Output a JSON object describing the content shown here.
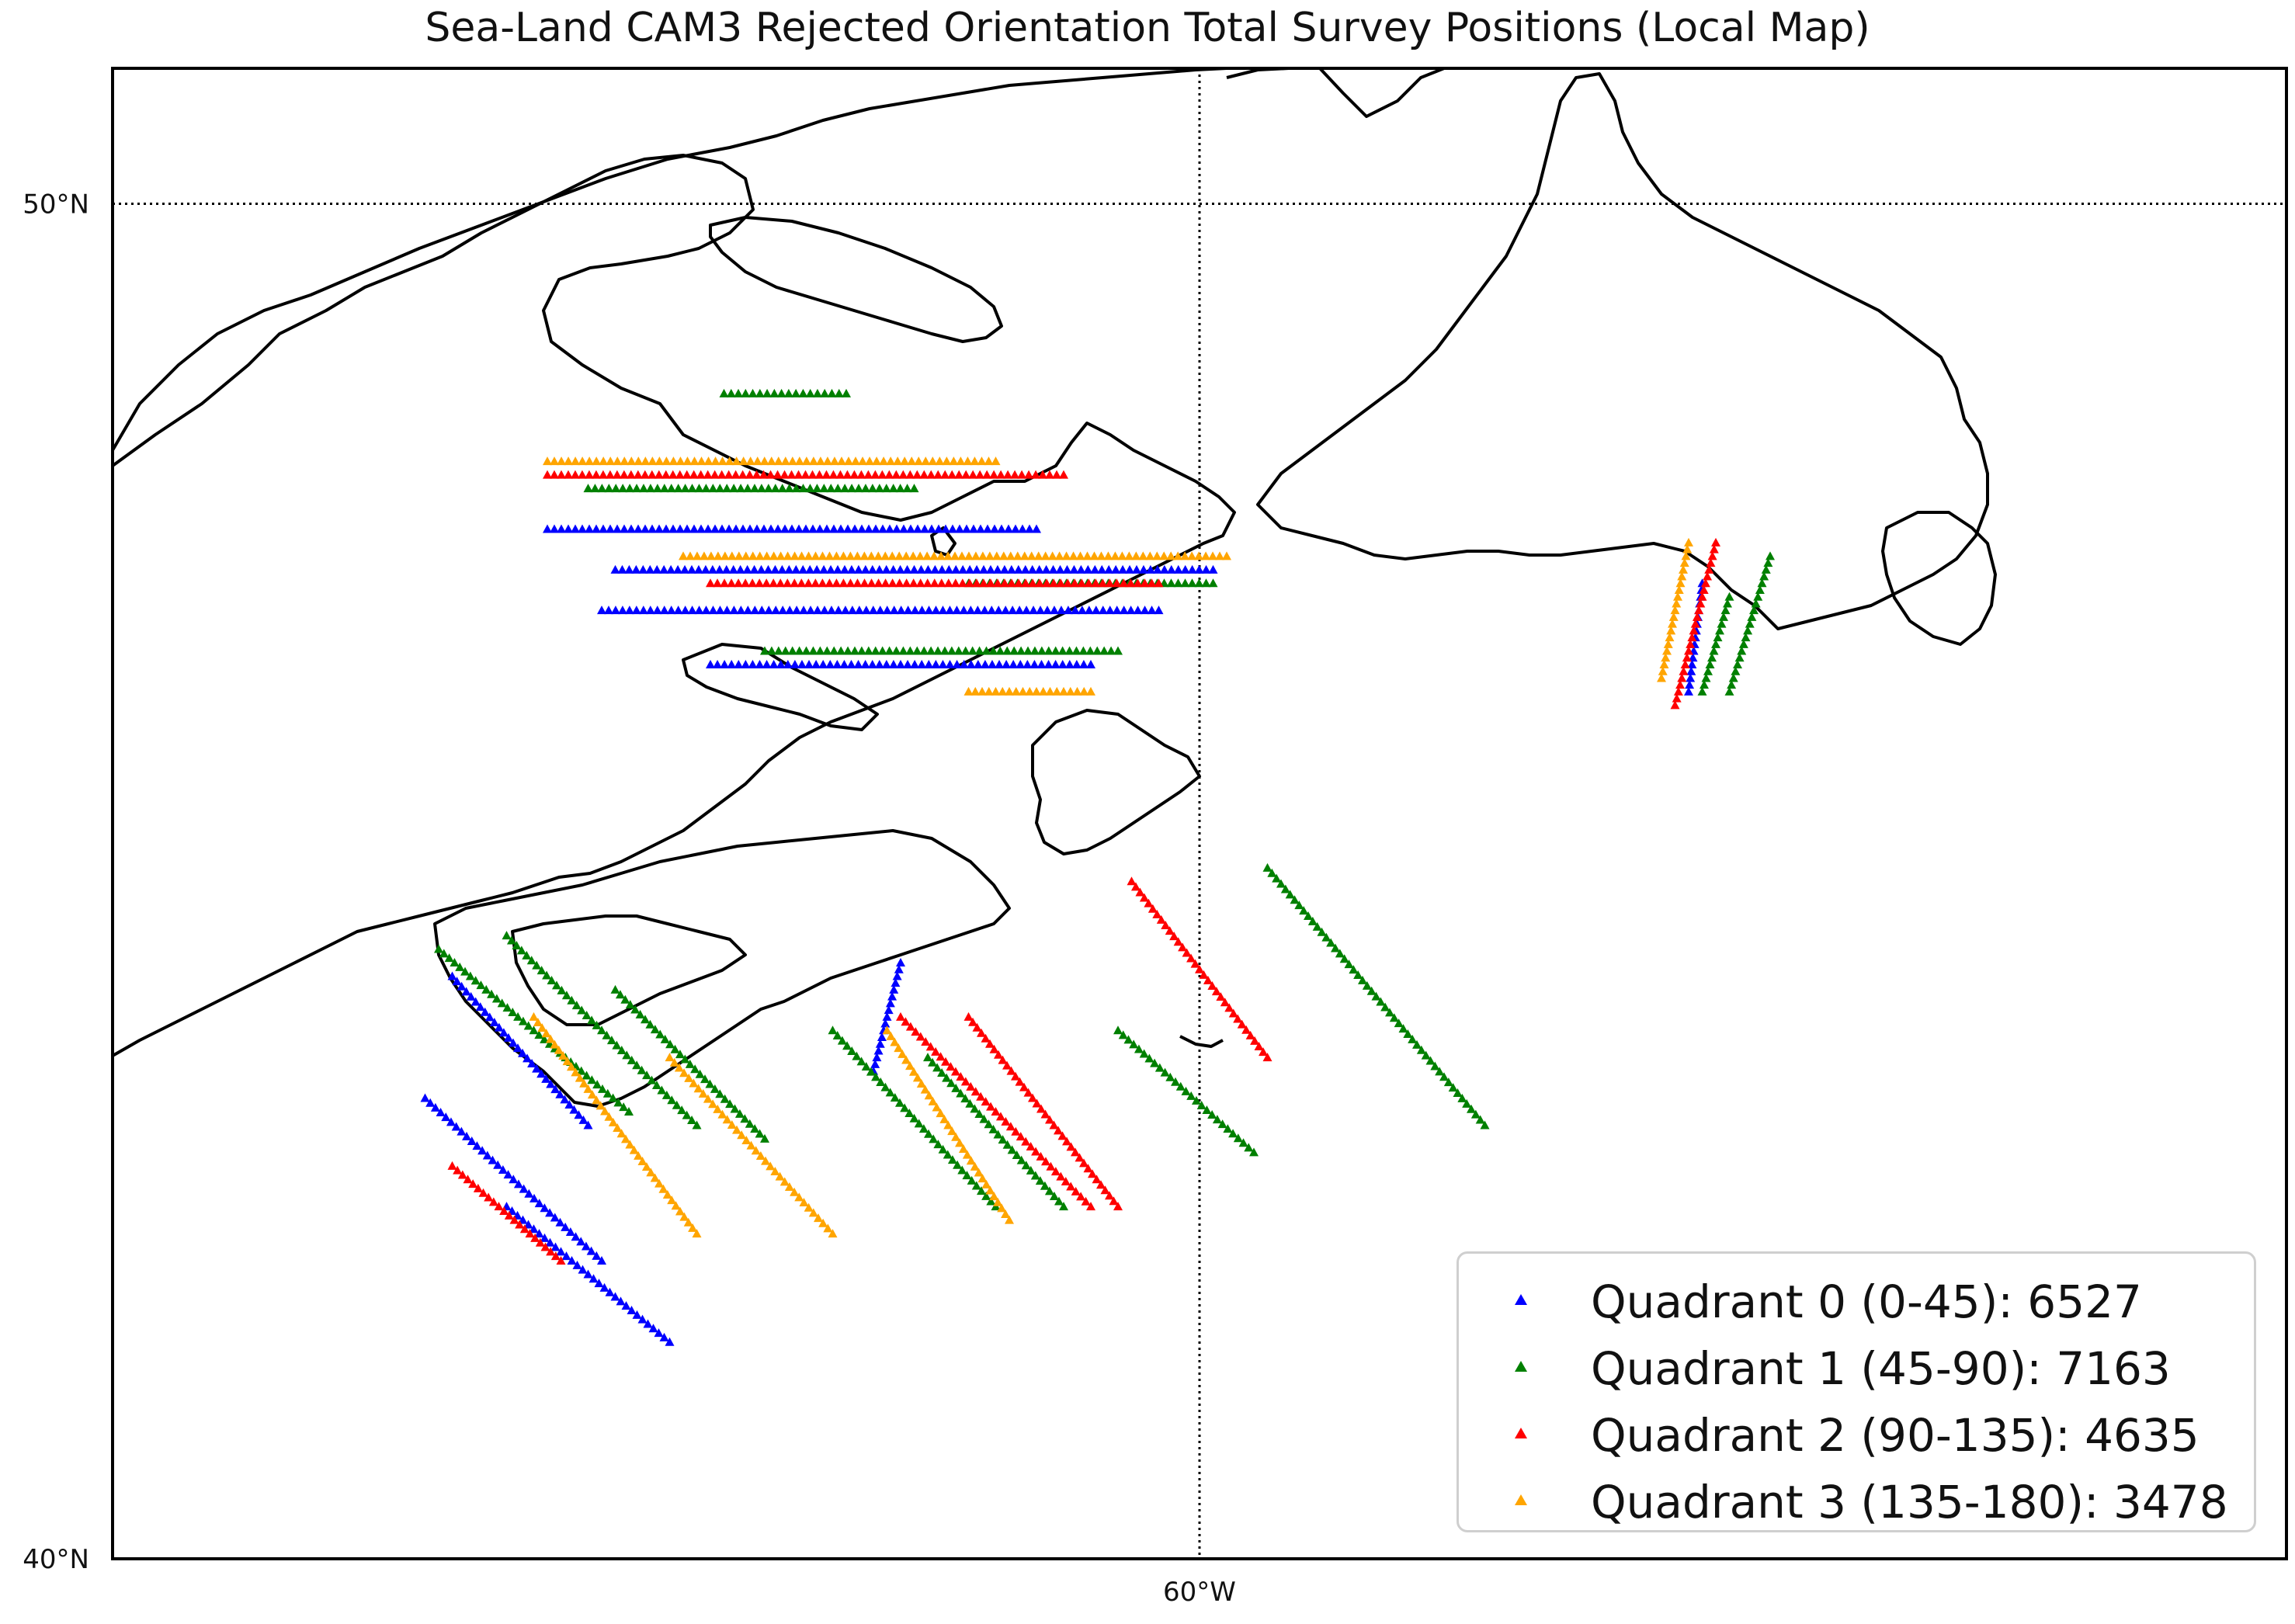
{
  "title": "Sea-Land CAM3 Rejected Orientation Total Survey Positions (Local Map)",
  "map": {
    "lat_labels": [
      {
        "lat": 50,
        "text": "50°N"
      },
      {
        "lat": 40,
        "text": "40°N"
      }
    ],
    "lon_labels": [
      {
        "lon": -60,
        "text": "60°W"
      }
    ],
    "gridlines": "dotted",
    "extent": {
      "lon_min": -68,
      "lon_max": -52,
      "lat_min": 40,
      "lat_max": 51
    }
  },
  "legend": {
    "placement": "bottom-right",
    "items": [
      {
        "label": "Quadrant 0 (0-45): 6527",
        "color": "#0000ff"
      },
      {
        "label": "Quadrant 1 (45-90): 7163",
        "color": "#008000"
      },
      {
        "label": "Quadrant 2 (90-135): 4635",
        "color": "#ff0000"
      },
      {
        "label": "Quadrant 3 (135-180): 3478",
        "color": "#ffa500"
      }
    ]
  },
  "chart_data": {
    "type": "scatter",
    "title": "Sea-Land CAM3 Rejected Orientation Total Survey Positions (Local Map)",
    "xlabel": "",
    "ylabel": "",
    "marker": "triangle",
    "series_colors": [
      "#0000ff",
      "#008000",
      "#ff0000",
      "#ffa500"
    ],
    "tracks": [
      {
        "q": 0,
        "from": [
          -65.7,
          43.4
        ],
        "to": [
          -64.4,
          42.2
        ]
      },
      {
        "q": 0,
        "from": [
          -65.1,
          42.6
        ],
        "to": [
          -63.9,
          41.6
        ]
      },
      {
        "q": 0,
        "from": [
          -65.5,
          44.3
        ],
        "to": [
          -64.5,
          43.2
        ]
      },
      {
        "q": 0,
        "from": [
          -62.2,
          44.4
        ],
        "to": [
          -62.4,
          43.6
        ]
      },
      {
        "q": 0,
        "from": [
          -64.8,
          47.6
        ],
        "to": [
          -61.2,
          47.6
        ]
      },
      {
        "q": 0,
        "from": [
          -64.4,
          47.0
        ],
        "to": [
          -60.3,
          47.0
        ]
      },
      {
        "q": 0,
        "from": [
          -63.6,
          46.6
        ],
        "to": [
          -60.8,
          46.6
        ]
      },
      {
        "q": 0,
        "from": [
          -64.3,
          47.3
        ],
        "to": [
          -59.9,
          47.3
        ]
      },
      {
        "q": 0,
        "from": [
          -56.3,
          47.2
        ],
        "to": [
          -56.4,
          46.4
        ]
      },
      {
        "q": 1,
        "from": [
          -65.6,
          44.5
        ],
        "to": [
          -64.2,
          43.3
        ]
      },
      {
        "q": 1,
        "from": [
          -65.1,
          44.6
        ],
        "to": [
          -63.7,
          43.2
        ]
      },
      {
        "q": 1,
        "from": [
          -64.3,
          44.2
        ],
        "to": [
          -63.2,
          43.1
        ]
      },
      {
        "q": 1,
        "from": [
          -62.7,
          43.9
        ],
        "to": [
          -61.5,
          42.6
        ]
      },
      {
        "q": 1,
        "from": [
          -62.0,
          43.7
        ],
        "to": [
          -61.0,
          42.6
        ]
      },
      {
        "q": 1,
        "from": [
          -59.5,
          45.1
        ],
        "to": [
          -57.9,
          43.2
        ]
      },
      {
        "q": 1,
        "from": [
          -60.6,
          43.9
        ],
        "to": [
          -59.6,
          43.0
        ]
      },
      {
        "q": 1,
        "from": [
          -63.5,
          48.6
        ],
        "to": [
          -62.6,
          48.6
        ]
      },
      {
        "q": 1,
        "from": [
          -64.5,
          47.9
        ],
        "to": [
          -62.1,
          47.9
        ]
      },
      {
        "q": 1,
        "from": [
          -63.2,
          46.7
        ],
        "to": [
          -60.6,
          46.7
        ]
      },
      {
        "q": 1,
        "from": [
          -61.7,
          47.2
        ],
        "to": [
          -59.9,
          47.2
        ]
      },
      {
        "q": 1,
        "from": [
          -55.8,
          47.4
        ],
        "to": [
          -56.1,
          46.4
        ]
      },
      {
        "q": 1,
        "from": [
          -56.1,
          47.1
        ],
        "to": [
          -56.3,
          46.4
        ]
      },
      {
        "q": 2,
        "from": [
          -62.2,
          44.0
        ],
        "to": [
          -60.8,
          42.6
        ]
      },
      {
        "q": 2,
        "from": [
          -61.7,
          44.0
        ],
        "to": [
          -60.6,
          42.6
        ]
      },
      {
        "q": 2,
        "from": [
          -60.5,
          45.0
        ],
        "to": [
          -59.5,
          43.7
        ]
      },
      {
        "q": 2,
        "from": [
          -65.5,
          42.9
        ],
        "to": [
          -64.7,
          42.2
        ]
      },
      {
        "q": 2,
        "from": [
          -64.8,
          48.0
        ],
        "to": [
          -61.0,
          48.0
        ]
      },
      {
        "q": 2,
        "from": [
          -63.6,
          47.2
        ],
        "to": [
          -60.3,
          47.2
        ]
      },
      {
        "q": 2,
        "from": [
          -56.2,
          47.5
        ],
        "to": [
          -56.5,
          46.3
        ]
      },
      {
        "q": 3,
        "from": [
          -63.9,
          43.7
        ],
        "to": [
          -62.7,
          42.4
        ]
      },
      {
        "q": 3,
        "from": [
          -62.3,
          43.9
        ],
        "to": [
          -61.4,
          42.5
        ]
      },
      {
        "q": 3,
        "from": [
          -64.9,
          44.0
        ],
        "to": [
          -63.7,
          42.4
        ]
      },
      {
        "q": 3,
        "from": [
          -64.8,
          48.1
        ],
        "to": [
          -61.5,
          48.1
        ]
      },
      {
        "q": 3,
        "from": [
          -63.8,
          47.4
        ],
        "to": [
          -59.8,
          47.4
        ]
      },
      {
        "q": 3,
        "from": [
          -61.7,
          46.4
        ],
        "to": [
          -60.8,
          46.4
        ]
      },
      {
        "q": 3,
        "from": [
          -56.4,
          47.5
        ],
        "to": [
          -56.6,
          46.5
        ]
      }
    ]
  }
}
